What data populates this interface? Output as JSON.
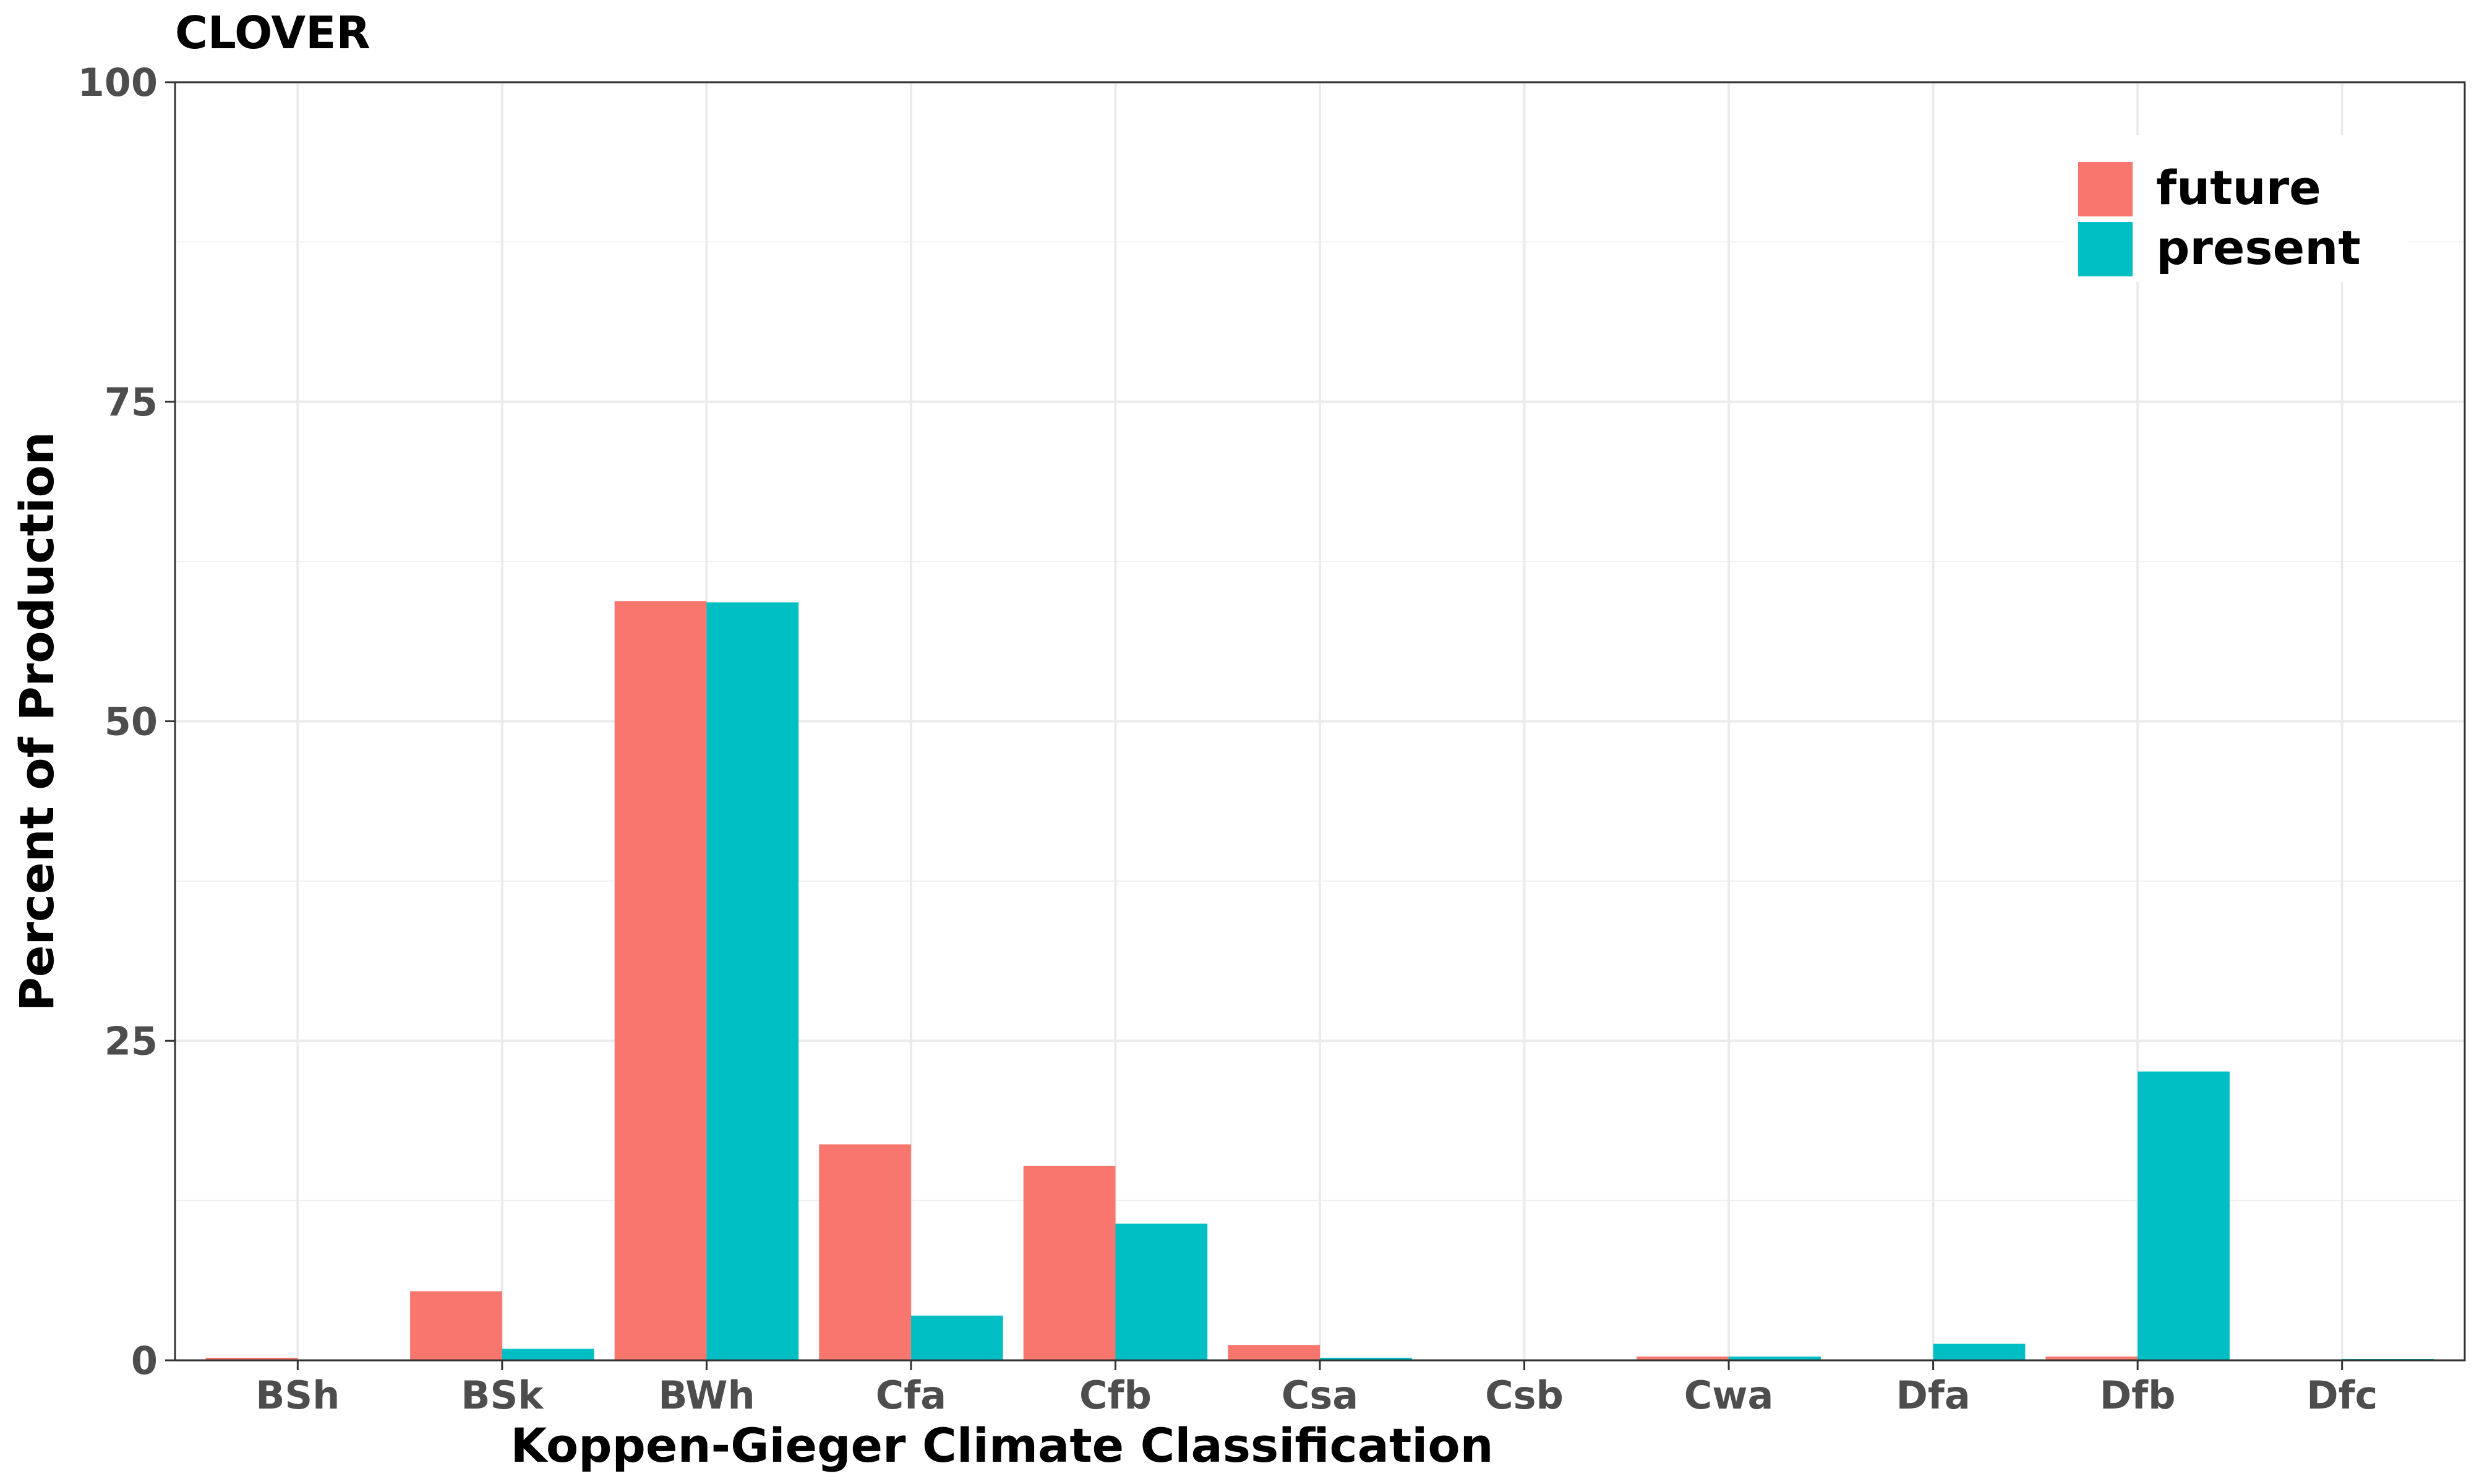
{
  "chart_data": {
    "type": "bar",
    "title": "CLOVER",
    "xlabel": "Koppen-Gieger Climate Classification",
    "ylabel": "Percent of Production",
    "categories": [
      "BSh",
      "BSk",
      "BWh",
      "Cfa",
      "Cfb",
      "Csa",
      "Csb",
      "Cwa",
      "Dfa",
      "Dfb",
      "Dfc"
    ],
    "series": [
      {
        "name": "future",
        "color": "#F8766D",
        "values": [
          0.2,
          5.4,
          59.4,
          16.9,
          15.2,
          1.2,
          0,
          0.3,
          0,
          0.3,
          0
        ]
      },
      {
        "name": "present",
        "color": "#00BFC4",
        "values": [
          0,
          0.9,
          59.3,
          3.5,
          10.7,
          0.2,
          0,
          0.3,
          1.3,
          22.6,
          0.1
        ]
      }
    ],
    "ylim": [
      0,
      100
    ],
    "yticks": [
      0,
      25,
      50,
      75,
      100
    ],
    "grid": true,
    "legend_position": "top-right"
  }
}
